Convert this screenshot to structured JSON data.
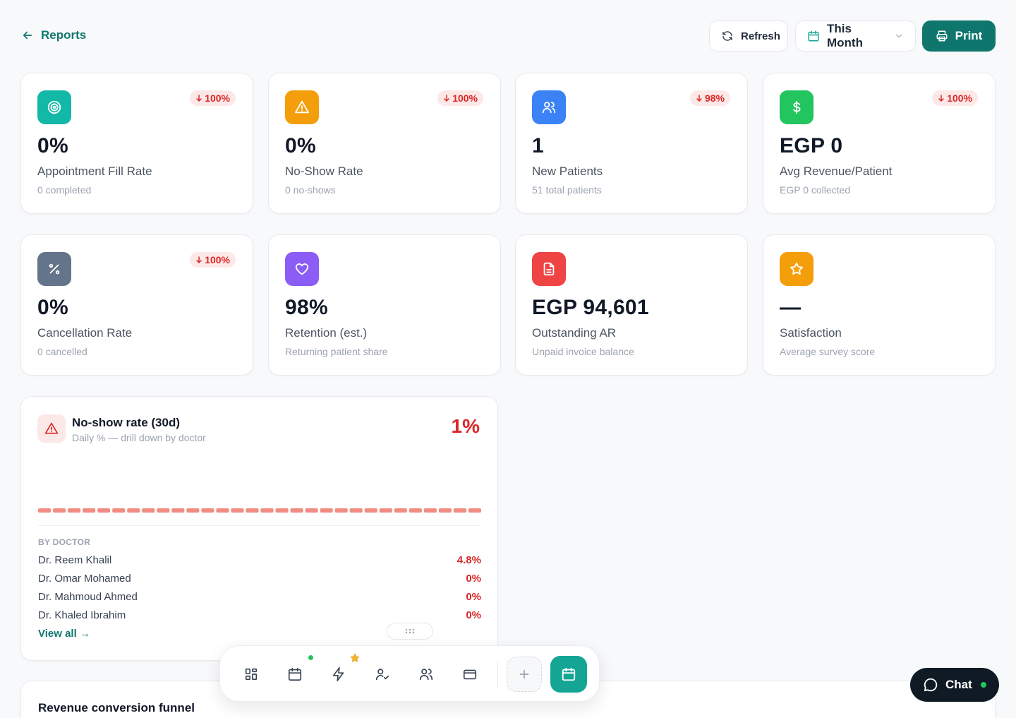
{
  "header": {
    "back_label": "Reports",
    "refresh_label": "Refresh",
    "period_label": "This Month",
    "print_label": "Print"
  },
  "kpis": [
    {
      "icon": "target-icon",
      "color": "#14b8a6",
      "value": "0%",
      "label": "Appointment Fill Rate",
      "sub": "0 completed",
      "delta": "100%"
    },
    {
      "icon": "warning-icon",
      "color": "#f59e0b",
      "value": "0%",
      "label": "No-Show Rate",
      "sub": "0 no-shows",
      "delta": "100%"
    },
    {
      "icon": "users-icon",
      "color": "#3b82f6",
      "value": "1",
      "label": "New Patients",
      "sub": "51 total patients",
      "delta": "98%"
    },
    {
      "icon": "dollar-icon",
      "color": "#22c55e",
      "value": "EGP 0",
      "label": "Avg Revenue/Patient",
      "sub": "EGP 0 collected",
      "delta": "100%"
    },
    {
      "icon": "percent-icon",
      "color": "#64748b",
      "value": "0%",
      "label": "Cancellation Rate",
      "sub": "0 cancelled",
      "delta": "100%"
    },
    {
      "icon": "heart-icon",
      "color": "#8b5cf6",
      "value": "98%",
      "label": "Retention (est.)",
      "sub": "Returning patient share",
      "delta": ""
    },
    {
      "icon": "document-icon",
      "color": "#ef4444",
      "value": "EGP 94,601",
      "label": "Outstanding AR",
      "sub": "Unpaid invoice balance",
      "delta": ""
    },
    {
      "icon": "star-icon",
      "color": "#f59e0b",
      "value": "—",
      "label": "Satisfaction",
      "sub": "Average survey score",
      "delta": ""
    }
  ],
  "noshow": {
    "title": "No-show rate (30d)",
    "subtitle": "Daily % — drill down by doctor",
    "value": "1%",
    "by_doctor_label": "BY DOCTOR",
    "daily_bar_count": 30,
    "doctors": [
      {
        "name": "Dr. Reem Khalil",
        "value": "4.8%"
      },
      {
        "name": "Dr. Omar Mohamed",
        "value": "0%"
      },
      {
        "name": "Dr. Mahmoud Ahmed",
        "value": "0%"
      },
      {
        "name": "Dr. Khaled Ibrahim",
        "value": "0%"
      }
    ],
    "view_all_label": "View all →"
  },
  "funnel": {
    "title": "Revenue conversion funnel"
  },
  "dock": {
    "items": [
      "dashboard-icon",
      "calendar-icon",
      "lightning-icon",
      "user-check-icon",
      "users-icon",
      "card-icon",
      "plus-icon",
      "calendar-icon"
    ]
  },
  "chat": {
    "label": "Chat"
  }
}
